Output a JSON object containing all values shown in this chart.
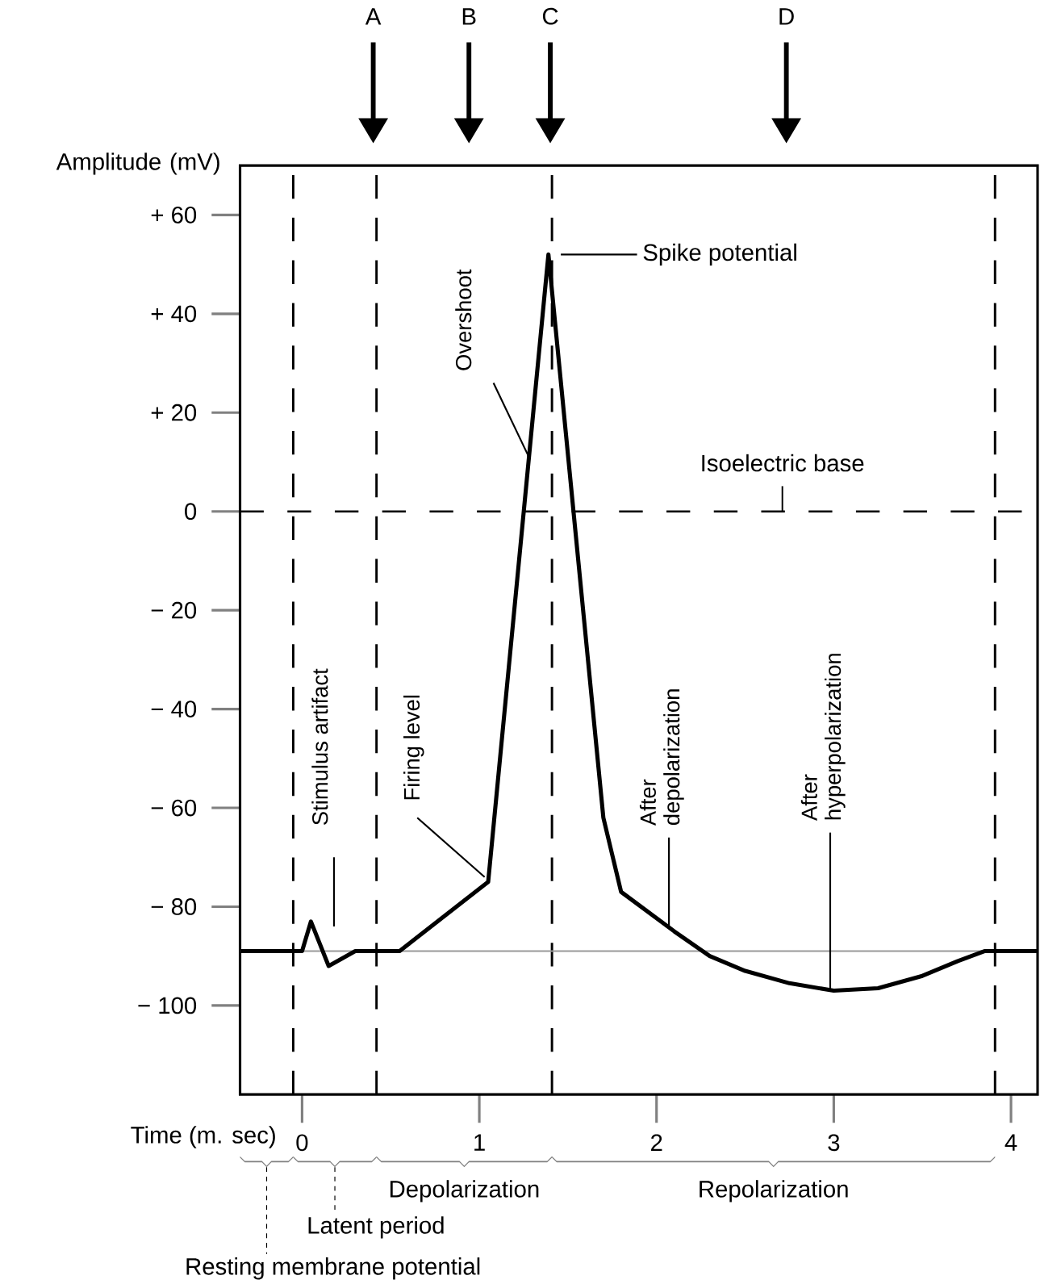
{
  "chart_data": {
    "type": "line",
    "xlabel": "Time (m. sec)",
    "ylabel": "Amplitude (mV)",
    "x": [
      -0.35,
      0,
      0.05,
      0.15,
      0.3,
      0.55,
      1.05,
      1.39,
      1.7,
      1.8,
      2.1,
      2.3,
      2.5,
      2.75,
      3.0,
      3.25,
      3.5,
      3.7,
      3.85,
      4.15
    ],
    "values": [
      -89,
      -89,
      -83,
      -92,
      -89,
      -89,
      -75,
      52,
      -62,
      -77,
      -85,
      -90,
      -93,
      -95.5,
      -97,
      -96.5,
      -94,
      -91,
      -89,
      -89
    ],
    "color": "#000000",
    "xlim": [
      -0.35,
      4.15
    ],
    "ylim": [
      -118,
      70
    ],
    "xticks": [
      0,
      1,
      2,
      3,
      4
    ],
    "yticks": [
      {
        "value": 60,
        "label": "+ 60"
      },
      {
        "value": 40,
        "label": "+ 40"
      },
      {
        "value": 20,
        "label": "+ 20"
      },
      0,
      {
        "value": -20,
        "label": "− 20"
      },
      {
        "value": -40,
        "label": "− 40"
      },
      {
        "value": -60,
        "label": "− 60"
      },
      {
        "value": -80,
        "label": "− 80"
      },
      {
        "value": -100,
        "label": "− 100"
      }
    ],
    "ref_lines": [
      {
        "axis": "x",
        "value": -0.05,
        "line_style": "dashed"
      },
      {
        "axis": "x",
        "value": 0.42,
        "line_style": "dashed"
      },
      {
        "axis": "x",
        "value": 1.41,
        "line_style": "dashed"
      },
      {
        "axis": "x",
        "value": 3.91,
        "line_style": "dashed"
      },
      {
        "axis": "y",
        "value": 0,
        "label": "Isoelectric base",
        "line_style": "dashed"
      },
      {
        "axis": "y",
        "value": -89,
        "line_style": "solid",
        "color": "#999999"
      }
    ],
    "annotations": [
      "A",
      "B",
      "C",
      "D",
      "Spike potential",
      "Stimulus artifact",
      {
        "text": "Overshoot",
        "x": 1.28,
        "y": 11
      },
      {
        "text": "Firing level",
        "x": 1.05,
        "y": -75
      },
      {
        "text": "After depolarization",
        "x": 2.07,
        "y": -84
      },
      {
        "text": "After hyperpolarization",
        "x": 2.98,
        "y": -97
      },
      "Resting membrane potential",
      "Latent period",
      "Depolarization",
      "Repolarization"
    ]
  }
}
